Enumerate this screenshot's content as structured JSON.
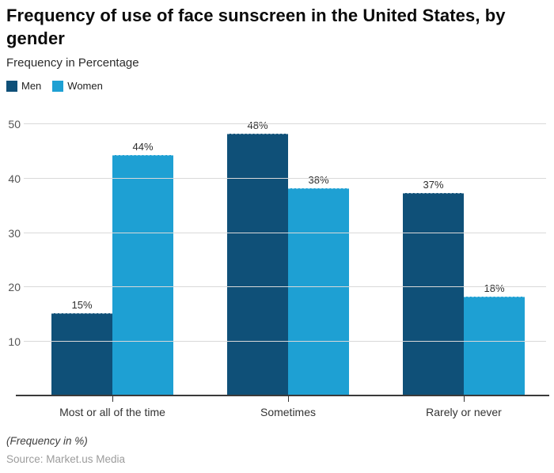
{
  "header": {
    "title": "Frequency of use of face sunscreen in the United States, by gender",
    "subtitle": "Frequency in Percentage"
  },
  "legend": [
    {
      "label": "Men",
      "color": "#0f5078"
    },
    {
      "label": "Women",
      "color": "#1ea0d3"
    }
  ],
  "chart_data": {
    "type": "bar",
    "title": "Frequency of use of face sunscreen in the United States, by gender",
    "categories": [
      "Most or all of the time",
      "Sometimes",
      "Rarely or never"
    ],
    "series": [
      {
        "name": "Men",
        "color": "#0f5078",
        "values": [
          15,
          48,
          37
        ]
      },
      {
        "name": "Women",
        "color": "#1ea0d3",
        "values": [
          44,
          38,
          18
        ]
      }
    ],
    "value_suffix": "%",
    "xlabel": "",
    "ylabel": "Frequency in Percentage",
    "ylim": [
      0,
      50
    ],
    "yticks": [
      10,
      20,
      30,
      40,
      50
    ],
    "grid": true,
    "legend_position": "top-left",
    "gridline_color": "#d9d9d9",
    "axis_color": "#3a3a3a"
  },
  "footer": {
    "note": "(Frequency in %)",
    "source": "Source: Market.us Media"
  }
}
